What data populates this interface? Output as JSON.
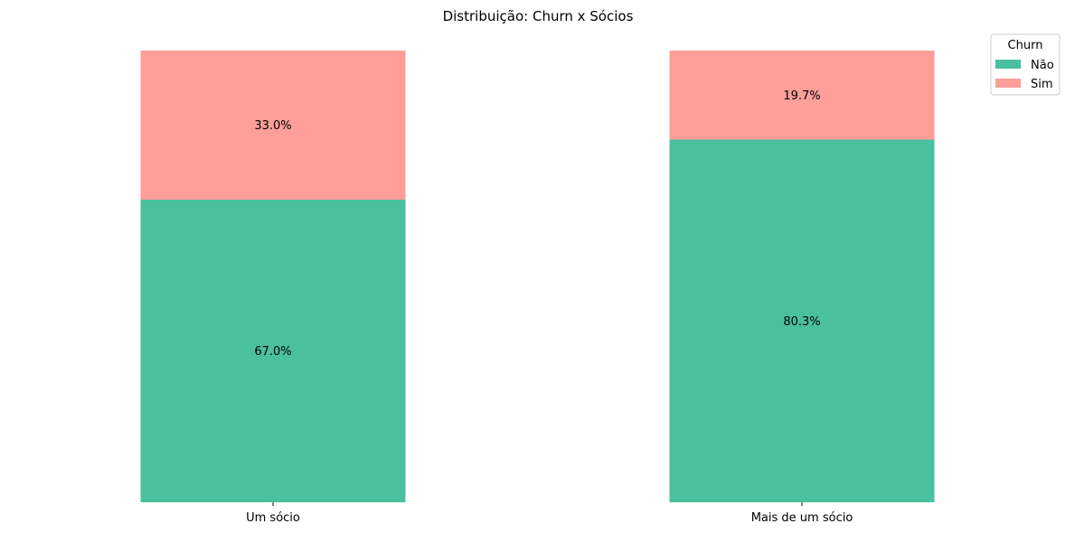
{
  "chart_data": {
    "type": "bar",
    "stacked": true,
    "normalized": true,
    "title": "Distribuição: Churn x Sócios",
    "xlabel": "",
    "ylabel": "",
    "categories": [
      "Um sócio",
      "Mais de um sócio"
    ],
    "series": [
      {
        "name": "Não",
        "values": [
          67.0,
          80.3
        ],
        "labels": [
          "67.0%",
          "80.3%"
        ],
        "color": "#4bc09e"
      },
      {
        "name": "Sim",
        "values": [
          33.0,
          19.7
        ],
        "labels": [
          "33.0%",
          "19.7%"
        ],
        "color": "#fe9e99"
      }
    ],
    "ylim": [
      0,
      100
    ],
    "grid": false,
    "legend": {
      "title": "Churn",
      "placement": "top-right"
    }
  }
}
